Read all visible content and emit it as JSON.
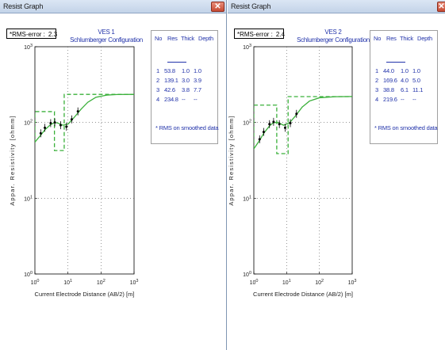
{
  "windows": [
    {
      "title": "Resist Graph",
      "rms_label": "*RMS-error :",
      "rms_value": "2.3",
      "ves_title": "VES 1",
      "config": "Schlumberger Configuration",
      "ylabel": "Appar. Resistivity [ohmm]",
      "xlabel": "Current Electrode Distance (AB/2) [m]",
      "legend": {
        "headers": [
          "No",
          "Res",
          "Thick",
          "Depth"
        ],
        "rows": [
          [
            "1",
            "53.8",
            "1.0",
            "1.0"
          ],
          [
            "2",
            "139.1",
            "3.0",
            "3.9"
          ],
          [
            "3",
            "42.6",
            "3.8",
            "7.7"
          ],
          [
            "4",
            "234.8",
            "--",
            "--"
          ]
        ],
        "note": "* RMS on smoothed data"
      },
      "y_ticks": [
        "10^3",
        "10^2",
        "10^1",
        "10^0"
      ],
      "x_ticks": [
        "10^0",
        "10^1",
        "10^2",
        "10^3"
      ]
    },
    {
      "title": "Resist Graph",
      "rms_label": "*RMS-error :",
      "rms_value": "2.4",
      "ves_title": "VES 2",
      "config": "Schlumberger Configuration",
      "ylabel": "Appar. Resistivity [ohmm]",
      "xlabel": "Current Electrode Distance (AB/2) [m]",
      "legend": {
        "headers": [
          "No",
          "Res",
          "Thick",
          "Depth"
        ],
        "rows": [
          [
            "1",
            "44.0",
            "1.0",
            "1.0"
          ],
          [
            "2",
            "169.6",
            "4.0",
            "5.0"
          ],
          [
            "3",
            "38.8",
            "6.1",
            "11.1"
          ],
          [
            "4",
            "219.6",
            "--",
            "--"
          ]
        ],
        "note": "* RMS on smoothed data"
      },
      "y_ticks": [
        "10^3",
        "10^2",
        "10^1",
        "10^0"
      ],
      "x_ticks": [
        "10^0",
        "10^1",
        "10^2",
        "10^3"
      ]
    }
  ],
  "chart_data": [
    {
      "type": "line",
      "xscale": "log",
      "yscale": "log",
      "xlim": [
        1,
        1000
      ],
      "ylim": [
        1,
        1000
      ],
      "grid": true,
      "xlabel": "Current Electrode Distance (AB/2) [m]",
      "ylabel": "Appar. Resistivity [ohmm]",
      "layers": [
        {
          "res": 53.8,
          "thick": 1.0,
          "depth": 1.0
        },
        {
          "res": 139.1,
          "thick": 3.0,
          "depth": 3.9
        },
        {
          "res": 42.6,
          "thick": 3.8,
          "depth": 7.7
        },
        {
          "res": 234.8
        }
      ],
      "observed": [
        {
          "x": 1.5,
          "y": 72
        },
        {
          "x": 2.0,
          "y": 85
        },
        {
          "x": 3.0,
          "y": 98
        },
        {
          "x": 4.0,
          "y": 100
        },
        {
          "x": 6.0,
          "y": 92
        },
        {
          "x": 9.0,
          "y": 88
        },
        {
          "x": 13.0,
          "y": 110
        },
        {
          "x": 20.0,
          "y": 140
        }
      ],
      "fitted": [
        {
          "x": 1.0,
          "y": 55
        },
        {
          "x": 1.5,
          "y": 68
        },
        {
          "x": 2.0,
          "y": 80
        },
        {
          "x": 3.0,
          "y": 94
        },
        {
          "x": 4.0,
          "y": 100
        },
        {
          "x": 5.0,
          "y": 98
        },
        {
          "x": 7.0,
          "y": 92
        },
        {
          "x": 10.0,
          "y": 95
        },
        {
          "x": 15.0,
          "y": 115
        },
        {
          "x": 25.0,
          "y": 150
        },
        {
          "x": 40.0,
          "y": 185
        },
        {
          "x": 70.0,
          "y": 215
        },
        {
          "x": 150.0,
          "y": 230
        },
        {
          "x": 300.0,
          "y": 234
        },
        {
          "x": 1000.0,
          "y": 235
        }
      ],
      "colors": {
        "model": "#3ab03a",
        "fit": "#3ab03a",
        "data": "#000000"
      }
    },
    {
      "type": "line",
      "xscale": "log",
      "yscale": "log",
      "xlim": [
        1,
        1000
      ],
      "ylim": [
        1,
        1000
      ],
      "grid": true,
      "xlabel": "Current Electrode Distance (AB/2) [m]",
      "ylabel": "Appar. Resistivity [ohmm]",
      "layers": [
        {
          "res": 44.0,
          "thick": 1.0,
          "depth": 1.0
        },
        {
          "res": 169.6,
          "thick": 4.0,
          "depth": 5.0
        },
        {
          "res": 38.8,
          "thick": 6.1,
          "depth": 11.1
        },
        {
          "res": 219.6
        }
      ],
      "observed": [
        {
          "x": 1.5,
          "y": 60
        },
        {
          "x": 2.0,
          "y": 75
        },
        {
          "x": 3.0,
          "y": 95
        },
        {
          "x": 4.0,
          "y": 102
        },
        {
          "x": 6.0,
          "y": 95
        },
        {
          "x": 9.0,
          "y": 85
        },
        {
          "x": 13.0,
          "y": 98
        },
        {
          "x": 20.0,
          "y": 130
        }
      ],
      "fitted": [
        {
          "x": 1.0,
          "y": 45
        },
        {
          "x": 1.5,
          "y": 58
        },
        {
          "x": 2.0,
          "y": 72
        },
        {
          "x": 3.0,
          "y": 90
        },
        {
          "x": 4.0,
          "y": 100
        },
        {
          "x": 5.5,
          "y": 100
        },
        {
          "x": 8.0,
          "y": 92
        },
        {
          "x": 12.0,
          "y": 98
        },
        {
          "x": 18.0,
          "y": 120
        },
        {
          "x": 30.0,
          "y": 160
        },
        {
          "x": 50.0,
          "y": 192
        },
        {
          "x": 100.0,
          "y": 212
        },
        {
          "x": 300.0,
          "y": 219
        },
        {
          "x": 1000.0,
          "y": 220
        }
      ],
      "colors": {
        "model": "#3ab03a",
        "fit": "#3ab03a",
        "data": "#000000"
      }
    }
  ]
}
